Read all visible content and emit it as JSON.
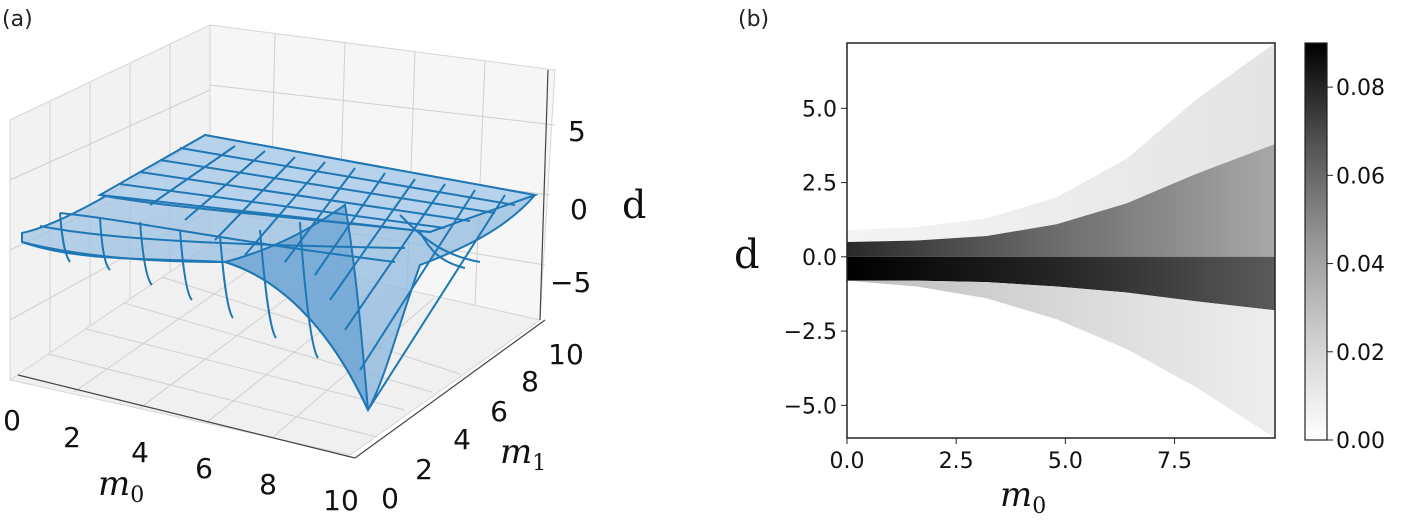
{
  "panel_a": {
    "label": "(a)",
    "chart_data": {
      "type": "surface3d",
      "xlabel": "m",
      "xlabel_sub": "0",
      "ylabel": "m",
      "ylabel_sub": "1",
      "zlabel": "d",
      "x_ticks": [
        "0",
        "2",
        "4",
        "6",
        "8",
        "10"
      ],
      "y_ticks": [
        "0",
        "2",
        "4",
        "6",
        "8",
        "10"
      ],
      "z_ticks": [
        "5",
        "0",
        "−5"
      ],
      "xlim": [
        0,
        10
      ],
      "ylim": [
        0,
        10
      ],
      "zlim": [
        -8,
        8
      ],
      "surface_color": "#1f77b4",
      "grid": true
    }
  },
  "panel_b": {
    "label": "(b)",
    "chart_data": {
      "type": "heatmap",
      "xlabel": "m",
      "xlabel_sub": "0",
      "ylabel": "d",
      "x_ticks": [
        {
          "value": 0.0,
          "label": "0.0"
        },
        {
          "value": 2.5,
          "label": "2.5"
        },
        {
          "value": 5.0,
          "label": "5.0"
        },
        {
          "value": 7.5,
          "label": "7.5"
        }
      ],
      "y_ticks": [
        {
          "value": 5.0,
          "label": "5.0"
        },
        {
          "value": 2.5,
          "label": "2.5"
        },
        {
          "value": 0.0,
          "label": "0.0"
        },
        {
          "value": -2.5,
          "label": "−2.5"
        },
        {
          "value": -5.0,
          "label": "−5.0"
        }
      ],
      "xlim": [
        0,
        9.8
      ],
      "ylim": [
        -6.1,
        7.2
      ],
      "colormap": "Greys",
      "colorbar": {
        "range": [
          0,
          0.09
        ],
        "ticks": [
          {
            "value": 0.08,
            "label": "0.08"
          },
          {
            "value": 0.06,
            "label": "0.06"
          },
          {
            "value": 0.04,
            "label": "0.04"
          },
          {
            "value": 0.02,
            "label": "0.02"
          },
          {
            "value": 0.0,
            "label": "0.00"
          }
        ]
      },
      "bands": [
        {
          "upper": [
            0.9,
            1.0,
            1.3,
            2.0,
            3.3,
            5.3,
            7.2
          ],
          "lower": [
            0.5,
            0.55,
            0.7,
            1.1,
            1.8,
            2.8,
            3.8
          ],
          "level": 0.01
        },
        {
          "upper": [
            0.5,
            0.55,
            0.7,
            1.1,
            1.8,
            2.8,
            3.8
          ],
          "lower": [
            0.0,
            0.0,
            0.0,
            0.0,
            0.0,
            0.0,
            0.0
          ],
          "level": 0.04
        },
        {
          "upper": [
            0.0,
            0.0,
            0.0,
            0.0,
            0.0,
            0.0,
            0.0
          ],
          "lower": [
            -0.8,
            -0.8,
            -0.85,
            -1.0,
            -1.2,
            -1.5,
            -1.8
          ],
          "level": 0.075
        },
        {
          "upper": [
            -0.8,
            -0.8,
            -0.85,
            -1.0,
            -1.2,
            -1.5,
            -1.8
          ],
          "lower": [
            -0.8,
            -1.0,
            -1.4,
            -2.1,
            -3.1,
            -4.4,
            -6.1
          ],
          "level": 0.02
        }
      ],
      "band_x": [
        0,
        1.6,
        3.2,
        4.8,
        6.4,
        8.0,
        9.8
      ]
    }
  }
}
